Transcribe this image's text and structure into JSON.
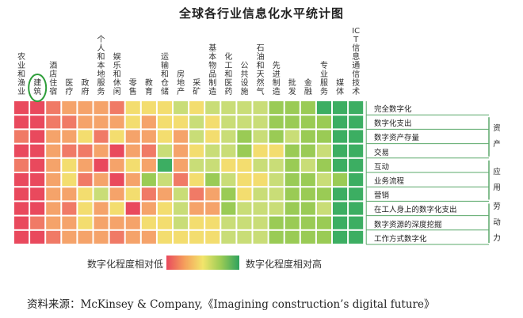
{
  "title": "全球各行业信息化水平统计图",
  "legend": {
    "low_label": "数字化程度相对低",
    "high_label": "数字化程度相对高",
    "colors": [
      "#e9495d",
      "#f07a66",
      "#f5a36a",
      "#f3dd6f",
      "#c9dd77",
      "#9acb55",
      "#3cae62"
    ]
  },
  "source": "资料来源：McKinsey & Company,《Imagining construction’s digital future》",
  "highlight_color": "#2e9e3a",
  "chart_data": {
    "type": "heatmap",
    "title": "全球各行业信息化水平统计图",
    "columns": [
      "农业和渔业",
      "建筑",
      "酒店住宿",
      "医疗",
      "政府",
      "个人和本地服务",
      "娱乐和休闲",
      "零售",
      "教育",
      "运输和仓储",
      "房地产",
      "采矿",
      "基本物品制造",
      "化工和医药",
      "公共设施",
      "石油和天然气",
      "先进制造",
      "批发",
      "金融",
      "专业服务",
      "媒体",
      "ICT信息通信技术"
    ],
    "highlighted_column": "建筑",
    "rows": [
      "完全数字化",
      "数字化支出",
      "数字资产存量",
      "交易",
      "互动",
      "业务流程",
      "营销",
      "在工人身上的数字化支出",
      "数字资源的深度挖掘",
      "工作方式数字化"
    ],
    "groups": [
      {
        "label": "资产",
        "rows": [
          "数字化支出",
          "数字资产存量",
          "交易"
        ]
      },
      {
        "label": "应用",
        "rows": [
          "互动",
          "业务流程",
          "营销"
        ]
      },
      {
        "label": "劳动力",
        "rows": [
          "在工人身上的数字化支出",
          "数字资源的深度挖掘",
          "工作方式数字化"
        ]
      }
    ],
    "scale": "0 = 数字化程度相对低, 6 = 数字化程度相对高",
    "values": [
      [
        0,
        0,
        1,
        2,
        2,
        2,
        1,
        3,
        3,
        3,
        4,
        3,
        4,
        4,
        4,
        4,
        5,
        5,
        5,
        6,
        6,
        6
      ],
      [
        0,
        0,
        1,
        1,
        2,
        2,
        2,
        3,
        2,
        3,
        3,
        4,
        3,
        4,
        4,
        4,
        5,
        5,
        5,
        5,
        6,
        6
      ],
      [
        1,
        0,
        2,
        2,
        3,
        1,
        3,
        2,
        2,
        3,
        2,
        4,
        3,
        4,
        5,
        4,
        5,
        4,
        5,
        5,
        6,
        6
      ],
      [
        0,
        0,
        2,
        1,
        1,
        2,
        0,
        2,
        1,
        4,
        2,
        3,
        4,
        4,
        5,
        3,
        3,
        5,
        5,
        4,
        6,
        6
      ],
      [
        1,
        0,
        2,
        3,
        2,
        0,
        2,
        3,
        2,
        6,
        2,
        4,
        4,
        3,
        3,
        4,
        4,
        5,
        4,
        5,
        6,
        6
      ],
      [
        0,
        0,
        2,
        3,
        1,
        2,
        0,
        2,
        5,
        4,
        1,
        3,
        5,
        4,
        3,
        3,
        4,
        5,
        5,
        4,
        5,
        6
      ],
      [
        0,
        0,
        2,
        2,
        3,
        4,
        2,
        3,
        1,
        2,
        4,
        1,
        2,
        5,
        3,
        4,
        4,
        5,
        5,
        5,
        6,
        6
      ],
      [
        0,
        0,
        2,
        1,
        3,
        2,
        3,
        0,
        2,
        3,
        4,
        2,
        2,
        5,
        4,
        4,
        4,
        5,
        5,
        4,
        6,
        6
      ],
      [
        0,
        1,
        2,
        2,
        3,
        2,
        2,
        2,
        3,
        3,
        4,
        3,
        3,
        4,
        4,
        4,
        5,
        5,
        5,
        5,
        6,
        6
      ],
      [
        0,
        0,
        1,
        2,
        2,
        2,
        1,
        2,
        2,
        3,
        3,
        3,
        3,
        4,
        4,
        4,
        5,
        5,
        5,
        5,
        6,
        6
      ]
    ]
  }
}
